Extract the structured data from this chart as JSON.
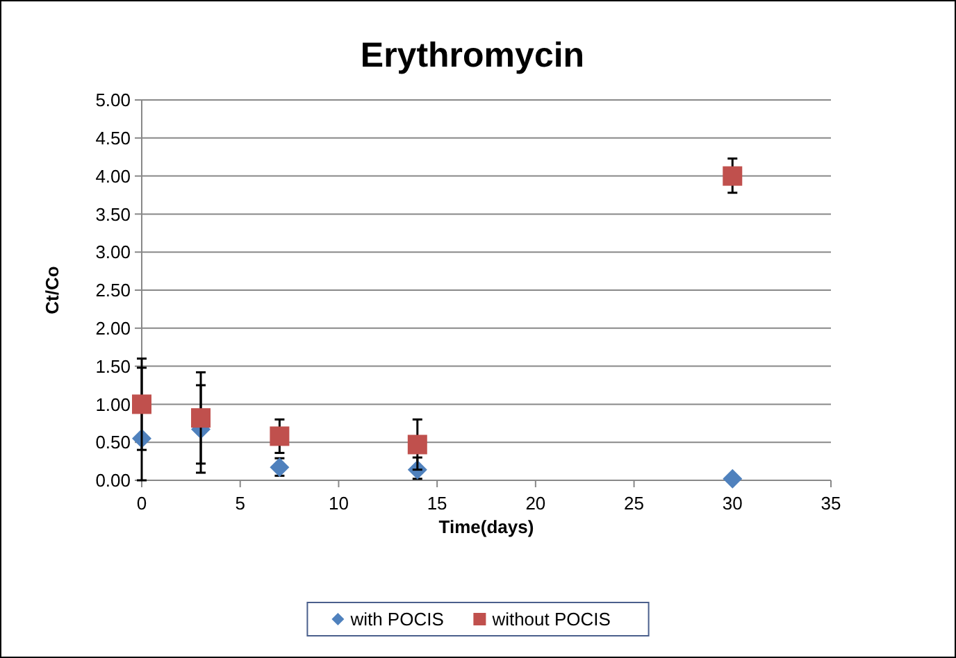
{
  "chart_data": {
    "type": "scatter",
    "title": "Erythromycin",
    "xlabel": "Time(days)",
    "ylabel": "Ct/Co",
    "x": [
      0,
      3,
      7,
      14,
      30
    ],
    "series": [
      {
        "name": "with POCIS",
        "color": "#4f81bd",
        "marker": "diamond",
        "values": [
          0.55,
          0.67,
          0.17,
          0.14,
          0.02
        ],
        "errors": [
          [
            0,
            1.48
          ],
          [
            0.1,
            1.25
          ],
          [
            0.06,
            0.29
          ],
          [
            0.02,
            0.3
          ],
          null
        ]
      },
      {
        "name": "without POCIS",
        "color": "#c0504d",
        "marker": "square",
        "values": [
          1.0,
          0.82,
          0.58,
          0.47,
          4.0
        ],
        "errors": [
          [
            0.4,
            1.6
          ],
          [
            0.22,
            1.42
          ],
          [
            0.36,
            0.8
          ],
          [
            0.14,
            0.8
          ],
          [
            3.78,
            4.23
          ]
        ]
      }
    ],
    "xlim": [
      0,
      35
    ],
    "xticks": [
      0,
      5,
      10,
      15,
      20,
      25,
      30,
      35
    ],
    "ylim": [
      0,
      5
    ],
    "yticks": [
      {
        "value": 0,
        "label": "0.00"
      },
      {
        "value": 0.5,
        "label": "0.50"
      },
      {
        "value": 1,
        "label": "1.00"
      },
      {
        "value": 1.5,
        "label": "1.50"
      },
      {
        "value": 2,
        "label": "2.00"
      },
      {
        "value": 2.5,
        "label": "2.50"
      },
      {
        "value": 3,
        "label": "3.00"
      },
      {
        "value": 3.5,
        "label": "3.50"
      },
      {
        "value": 4,
        "label": "4.00"
      },
      {
        "value": 4.5,
        "label": "4.50"
      },
      {
        "value": 5,
        "label": "5.00"
      }
    ],
    "grid": "y",
    "legend": "bottom"
  }
}
